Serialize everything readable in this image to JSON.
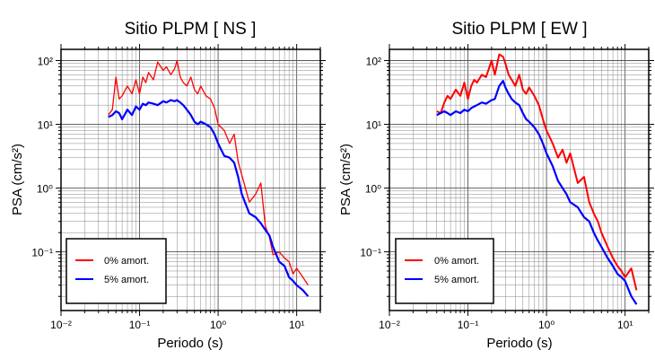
{
  "chart_data": [
    {
      "type": "line",
      "title": "Sitio PLPM [ NS ]",
      "xlabel": "Periodo (s)",
      "ylabel": "PSA (cm/s²)",
      "xscale": "log",
      "yscale": "log",
      "xlim": [
        0.01,
        20
      ],
      "ylim": [
        0.012,
        150
      ],
      "xtick_labels": [
        "10⁻²",
        "10⁻¹",
        "10⁰",
        "10¹"
      ],
      "ytick_labels": [
        "10²",
        "10¹",
        "10⁰",
        "10⁻¹"
      ],
      "grid": true,
      "legend": "bottom-left",
      "series": [
        {
          "name": "0% amort.",
          "color": "#ff0000",
          "x": [
            0.04,
            0.045,
            0.05,
            0.055,
            0.06,
            0.07,
            0.08,
            0.09,
            0.1,
            0.11,
            0.12,
            0.13,
            0.15,
            0.17,
            0.2,
            0.22,
            0.25,
            0.28,
            0.3,
            0.33,
            0.36,
            0.4,
            0.45,
            0.5,
            0.55,
            0.6,
            0.7,
            0.8,
            0.9,
            1.0,
            1.2,
            1.4,
            1.6,
            1.8,
            2.0,
            2.5,
            3.0,
            3.5,
            4.0,
            4.5,
            5.0,
            6.0,
            7.0,
            8.0,
            9.0,
            10.0,
            12.0,
            14.0
          ],
          "values": [
            14,
            17,
            55,
            25,
            28,
            40,
            30,
            50,
            30,
            55,
            45,
            65,
            50,
            95,
            70,
            80,
            60,
            75,
            100,
            55,
            45,
            40,
            55,
            35,
            30,
            40,
            28,
            25,
            18,
            10,
            8,
            5,
            7,
            2.6,
            1.6,
            0.6,
            0.8,
            1.2,
            0.25,
            0.17,
            0.09,
            0.1,
            0.08,
            0.07,
            0.045,
            0.055,
            0.04,
            0.03
          ]
        },
        {
          "name": "5% amort.",
          "color": "#0000ff",
          "x": [
            0.04,
            0.045,
            0.05,
            0.055,
            0.06,
            0.07,
            0.08,
            0.09,
            0.1,
            0.11,
            0.12,
            0.13,
            0.15,
            0.17,
            0.2,
            0.22,
            0.25,
            0.28,
            0.3,
            0.33,
            0.36,
            0.4,
            0.45,
            0.5,
            0.55,
            0.6,
            0.7,
            0.8,
            0.9,
            1.0,
            1.2,
            1.4,
            1.6,
            1.8,
            2.0,
            2.5,
            3.0,
            3.5,
            4.0,
            4.5,
            5.0,
            6.0,
            7.0,
            8.0,
            9.0,
            10.0,
            12.0,
            14.0
          ],
          "values": [
            13,
            14,
            16,
            15,
            12,
            17,
            14,
            19,
            17,
            21,
            20,
            22,
            21,
            20,
            23,
            22,
            24,
            23,
            24,
            22,
            20,
            17,
            14,
            11,
            10,
            11,
            10,
            9,
            7,
            5,
            3.2,
            3,
            2.5,
            1.5,
            0.8,
            0.4,
            0.35,
            0.28,
            0.22,
            0.18,
            0.12,
            0.07,
            0.06,
            0.04,
            0.035,
            0.03,
            0.025,
            0.02
          ]
        }
      ]
    },
    {
      "type": "line",
      "title": "Sitio PLPM [ EW ]",
      "xlabel": "Periodo (s)",
      "ylabel": "PSA (cm/s²)",
      "xscale": "log",
      "yscale": "log",
      "xlim": [
        0.01,
        20
      ],
      "ylim": [
        0.012,
        150
      ],
      "xtick_labels": [
        "10⁻²",
        "10⁻¹",
        "10⁰",
        "10¹"
      ],
      "ytick_labels": [
        "10²",
        "10¹",
        "10⁰",
        "10⁻¹"
      ],
      "grid": true,
      "legend": "bottom-left",
      "series": [
        {
          "name": "0% amort.",
          "color": "#ff0000",
          "x": [
            0.04,
            0.045,
            0.05,
            0.055,
            0.06,
            0.07,
            0.08,
            0.09,
            0.1,
            0.11,
            0.12,
            0.13,
            0.15,
            0.17,
            0.2,
            0.22,
            0.25,
            0.28,
            0.3,
            0.33,
            0.36,
            0.4,
            0.45,
            0.5,
            0.55,
            0.6,
            0.7,
            0.8,
            0.9,
            1.0,
            1.2,
            1.4,
            1.6,
            1.8,
            2.0,
            2.5,
            3.0,
            3.5,
            4.0,
            4.5,
            5.0,
            6.0,
            7.0,
            8.0,
            9.0,
            10.0,
            12.0,
            14.0
          ],
          "values": [
            16,
            15,
            22,
            28,
            25,
            35,
            28,
            45,
            25,
            40,
            50,
            45,
            60,
            55,
            100,
            60,
            125,
            115,
            90,
            60,
            50,
            40,
            60,
            35,
            30,
            38,
            28,
            20,
            12,
            8,
            5,
            3,
            4,
            2.5,
            3.5,
            1.2,
            1.5,
            0.6,
            0.4,
            0.3,
            0.2,
            0.12,
            0.08,
            0.06,
            0.05,
            0.04,
            0.055,
            0.025
          ]
        },
        {
          "name": "5% amort.",
          "color": "#0000ff",
          "x": [
            0.04,
            0.045,
            0.05,
            0.055,
            0.06,
            0.07,
            0.08,
            0.09,
            0.1,
            0.11,
            0.12,
            0.13,
            0.15,
            0.17,
            0.2,
            0.22,
            0.25,
            0.28,
            0.3,
            0.33,
            0.36,
            0.4,
            0.45,
            0.5,
            0.55,
            0.6,
            0.7,
            0.8,
            0.9,
            1.0,
            1.2,
            1.4,
            1.6,
            1.8,
            2.0,
            2.5,
            3.0,
            3.5,
            4.0,
            4.5,
            5.0,
            6.0,
            7.0,
            8.0,
            9.0,
            10.0,
            12.0,
            14.0
          ],
          "values": [
            14,
            15,
            16,
            15,
            14,
            16,
            15,
            17,
            16,
            18,
            19,
            20,
            22,
            21,
            24,
            25,
            40,
            48,
            38,
            30,
            25,
            22,
            20,
            15,
            12,
            11,
            9,
            7,
            5,
            3.5,
            2.2,
            1.3,
            1.0,
            0.8,
            0.6,
            0.5,
            0.35,
            0.3,
            0.2,
            0.15,
            0.12,
            0.08,
            0.06,
            0.045,
            0.04,
            0.035,
            0.02,
            0.015
          ]
        }
      ]
    }
  ]
}
